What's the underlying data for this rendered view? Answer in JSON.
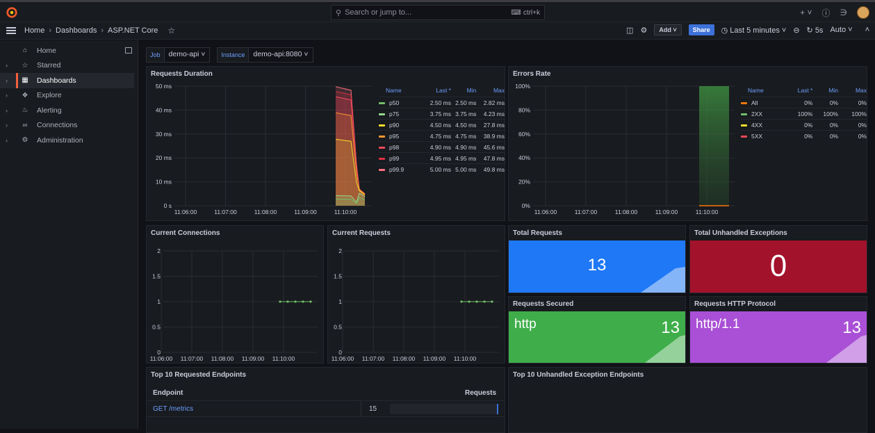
{
  "search": {
    "placeholder": "Search or jump to...",
    "shortcut": "ctrl+k"
  },
  "breadcrumb": {
    "home": "Home",
    "dashboards": "Dashboards",
    "current": "ASP.NET Core"
  },
  "toolbar": {
    "add_label": "Add",
    "share_label": "Share",
    "time_range": "Last 5 minutes",
    "refresh_interval": "5s",
    "refresh_mode": "Auto"
  },
  "sidebar": {
    "items": [
      {
        "label": "Home",
        "icon": "home-icon"
      },
      {
        "label": "Starred",
        "icon": "star-icon"
      },
      {
        "label": "Dashboards",
        "icon": "dashboards-icon",
        "active": true
      },
      {
        "label": "Explore",
        "icon": "compass-icon"
      },
      {
        "label": "Alerting",
        "icon": "bell-icon"
      },
      {
        "label": "Connections",
        "icon": "connections-icon"
      },
      {
        "label": "Administration",
        "icon": "gear-icon"
      }
    ]
  },
  "variables": {
    "job": {
      "label": "Job",
      "value": "demo-api"
    },
    "instance": {
      "label": "Instance",
      "value": "demo-api:8080"
    }
  },
  "panels": {
    "requests_duration": {
      "title": "Requests Duration",
      "legend_headers": [
        "Name",
        "Last *",
        "Min",
        "Max"
      ],
      "legend": [
        {
          "name": "p50",
          "last": "2.50 ms",
          "min": "2.50 ms",
          "max": "2.82 ms",
          "color": "#73bf69"
        },
        {
          "name": "p75",
          "last": "3.75 ms",
          "min": "3.75 ms",
          "max": "4.23 ms",
          "color": "#96d98d"
        },
        {
          "name": "p90",
          "last": "4.50 ms",
          "min": "4.50 ms",
          "max": "27.8 ms",
          "color": "#fade2a"
        },
        {
          "name": "p95",
          "last": "4.75 ms",
          "min": "4.75 ms",
          "max": "38.9 ms",
          "color": "#ff9830"
        },
        {
          "name": "p98",
          "last": "4.90 ms",
          "min": "4.90 ms",
          "max": "45.6 ms",
          "color": "#f2495c"
        },
        {
          "name": "p99",
          "last": "4.95 ms",
          "min": "4.95 ms",
          "max": "47.8 ms",
          "color": "#e02f44"
        },
        {
          "name": "p99.9",
          "last": "5.00 ms",
          "min": "5.00 ms",
          "max": "49.8 ms",
          "color": "#ff7383"
        }
      ]
    },
    "errors_rate": {
      "title": "Errors Rate",
      "legend_headers": [
        "Name",
        "Last *",
        "Min",
        "Max"
      ],
      "legend": [
        {
          "name": "All",
          "last": "0%",
          "min": "0%",
          "max": "0%",
          "color": "#ff780a"
        },
        {
          "name": "2XX",
          "last": "100%",
          "min": "100%",
          "max": "100%",
          "color": "#73bf69"
        },
        {
          "name": "4XX",
          "last": "0%",
          "min": "0%",
          "max": "0%",
          "color": "#fade2a"
        },
        {
          "name": "5XX",
          "last": "0%",
          "min": "0%",
          "max": "0%",
          "color": "#f2495c"
        }
      ]
    },
    "current_connections": {
      "title": "Current Connections"
    },
    "current_requests": {
      "title": "Current Requests"
    },
    "total_requests": {
      "title": "Total Requests",
      "value": "13",
      "color": "#1f78f5"
    },
    "total_unhandled_exceptions": {
      "title": "Total Unhandled Exceptions",
      "value": "0",
      "color": "#a3122b"
    },
    "requests_secured": {
      "title": "Requests Secured",
      "label": "http",
      "value": "13",
      "color": "#3fae4a"
    },
    "requests_http_protocol": {
      "title": "Requests HTTP Protocol",
      "label": "http/1.1",
      "value": "13",
      "color": "#a950d6"
    },
    "top_endpoints": {
      "title": "Top 10 Requested Endpoints",
      "col_endpoint": "Endpoint",
      "col_requests": "Requests",
      "rows": [
        {
          "endpoint": "GET /metrics",
          "requests": "15"
        }
      ]
    },
    "top_exception_endpoints": {
      "title": "Top 10 Unhandled Exception Endpoints"
    }
  },
  "chart_data": [
    {
      "type": "line",
      "title": "Requests Duration",
      "ylim": [
        0,
        50
      ],
      "y_ticks": [
        "0 s",
        "10 ms",
        "20 ms",
        "30 ms",
        "40 ms",
        "50 ms"
      ],
      "x_ticks": [
        "11:06:00",
        "11:07:00",
        "11:08:00",
        "11:09:00",
        "11:10:00"
      ],
      "series": [
        {
          "name": "p50",
          "last": 2.5,
          "max": 2.82
        },
        {
          "name": "p75",
          "last": 3.75,
          "max": 4.23
        },
        {
          "name": "p90",
          "last": 4.5,
          "max": 27.8
        },
        {
          "name": "p95",
          "last": 4.75,
          "max": 38.9
        },
        {
          "name": "p98",
          "last": 4.9,
          "max": 45.6
        },
        {
          "name": "p99",
          "last": 4.95,
          "max": 47.8
        },
        {
          "name": "p99.9",
          "last": 5.0,
          "max": 49.8
        }
      ]
    },
    {
      "type": "area",
      "title": "Errors Rate",
      "ylim": [
        0,
        100
      ],
      "y_ticks": [
        "0%",
        "20%",
        "40%",
        "60%",
        "80%",
        "100%"
      ],
      "x_ticks": [
        "11:06:00",
        "11:07:00",
        "11:08:00",
        "11:09:00",
        "11:10:00"
      ],
      "series": [
        {
          "name": "2XX",
          "value": 100
        },
        {
          "name": "All",
          "value": 0
        }
      ]
    },
    {
      "type": "line",
      "title": "Current Connections",
      "ylim": [
        0,
        2
      ],
      "y_ticks": [
        "0",
        "0.5",
        "1",
        "1.5",
        "2"
      ],
      "x_ticks": [
        "11:06:00",
        "11:07:00",
        "11:08:00",
        "11:09:00",
        "11:10:00"
      ],
      "values": [
        1,
        1,
        1,
        1,
        1
      ]
    },
    {
      "type": "line",
      "title": "Current Requests",
      "ylim": [
        0,
        2
      ],
      "y_ticks": [
        "0",
        "0.5",
        "1",
        "1.5",
        "2"
      ],
      "x_ticks": [
        "11:06:00",
        "11:07:00",
        "11:08:00",
        "11:09:00",
        "11:10:00"
      ],
      "values": [
        1,
        1,
        1,
        1,
        1
      ]
    }
  ]
}
